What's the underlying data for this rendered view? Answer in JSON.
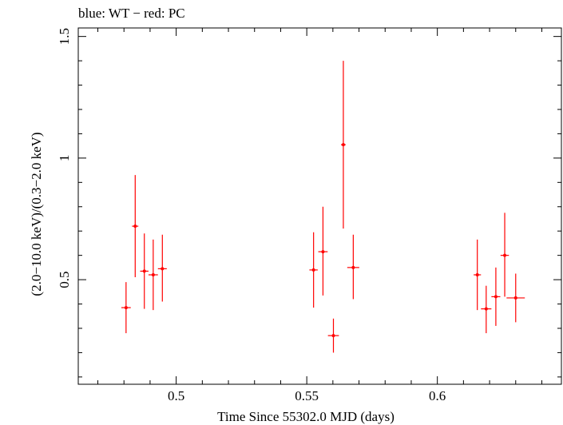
{
  "chart_data": {
    "type": "scatter",
    "title": "blue: WT − red: PC",
    "xlabel": "Time Since 55302.0 MJD (days)",
    "ylabel": "(2.0−10.0 keV)/(0.3−2.0 keV)",
    "xlim": [
      0.4625,
      0.6475
    ],
    "ylim": [
      0.07,
      1.535
    ],
    "x_ticks": [
      {
        "value": 0.5,
        "label": "0.5"
      },
      {
        "value": 0.55,
        "label": "0.55"
      },
      {
        "value": 0.6,
        "label": "0.6"
      }
    ],
    "y_ticks": [
      {
        "value": 0.5,
        "label": "0.5"
      },
      {
        "value": 1.0,
        "label": "1"
      },
      {
        "value": 1.5,
        "label": "1.5"
      }
    ],
    "grid": false,
    "series": [
      {
        "color": "#ff0000",
        "points": [
          {
            "x": 0.4808,
            "xerr": 0.0018,
            "y": 0.385,
            "ylo": 0.28,
            "yhi": 0.49
          },
          {
            "x": 0.4843,
            "xerr": 0.0012,
            "y": 0.72,
            "ylo": 0.51,
            "yhi": 0.93
          },
          {
            "x": 0.4878,
            "xerr": 0.0016,
            "y": 0.535,
            "ylo": 0.38,
            "yhi": 0.69
          },
          {
            "x": 0.4912,
            "xerr": 0.0018,
            "y": 0.52,
            "ylo": 0.375,
            "yhi": 0.665
          },
          {
            "x": 0.4947,
            "xerr": 0.0017,
            "y": 0.545,
            "ylo": 0.41,
            "yhi": 0.685
          },
          {
            "x": 0.5526,
            "xerr": 0.0016,
            "y": 0.54,
            "ylo": 0.385,
            "yhi": 0.695
          },
          {
            "x": 0.5562,
            "xerr": 0.0018,
            "y": 0.615,
            "ylo": 0.435,
            "yhi": 0.8
          },
          {
            "x": 0.5602,
            "xerr": 0.0021,
            "y": 0.27,
            "ylo": 0.2,
            "yhi": 0.34
          },
          {
            "x": 0.564,
            "xerr": 0.0009,
            "y": 1.055,
            "ylo": 0.71,
            "yhi": 1.4
          },
          {
            "x": 0.5678,
            "xerr": 0.0023,
            "y": 0.55,
            "ylo": 0.42,
            "yhi": 0.685
          },
          {
            "x": 0.6153,
            "xerr": 0.0014,
            "y": 0.52,
            "ylo": 0.375,
            "yhi": 0.665
          },
          {
            "x": 0.6187,
            "xerr": 0.002,
            "y": 0.38,
            "ylo": 0.28,
            "yhi": 0.475
          },
          {
            "x": 0.6224,
            "xerr": 0.0017,
            "y": 0.43,
            "ylo": 0.31,
            "yhi": 0.55
          },
          {
            "x": 0.6258,
            "xerr": 0.0016,
            "y": 0.6,
            "ylo": 0.43,
            "yhi": 0.775
          },
          {
            "x": 0.63,
            "xerr": 0.0035,
            "y": 0.425,
            "ylo": 0.325,
            "yhi": 0.525
          }
        ]
      }
    ]
  }
}
